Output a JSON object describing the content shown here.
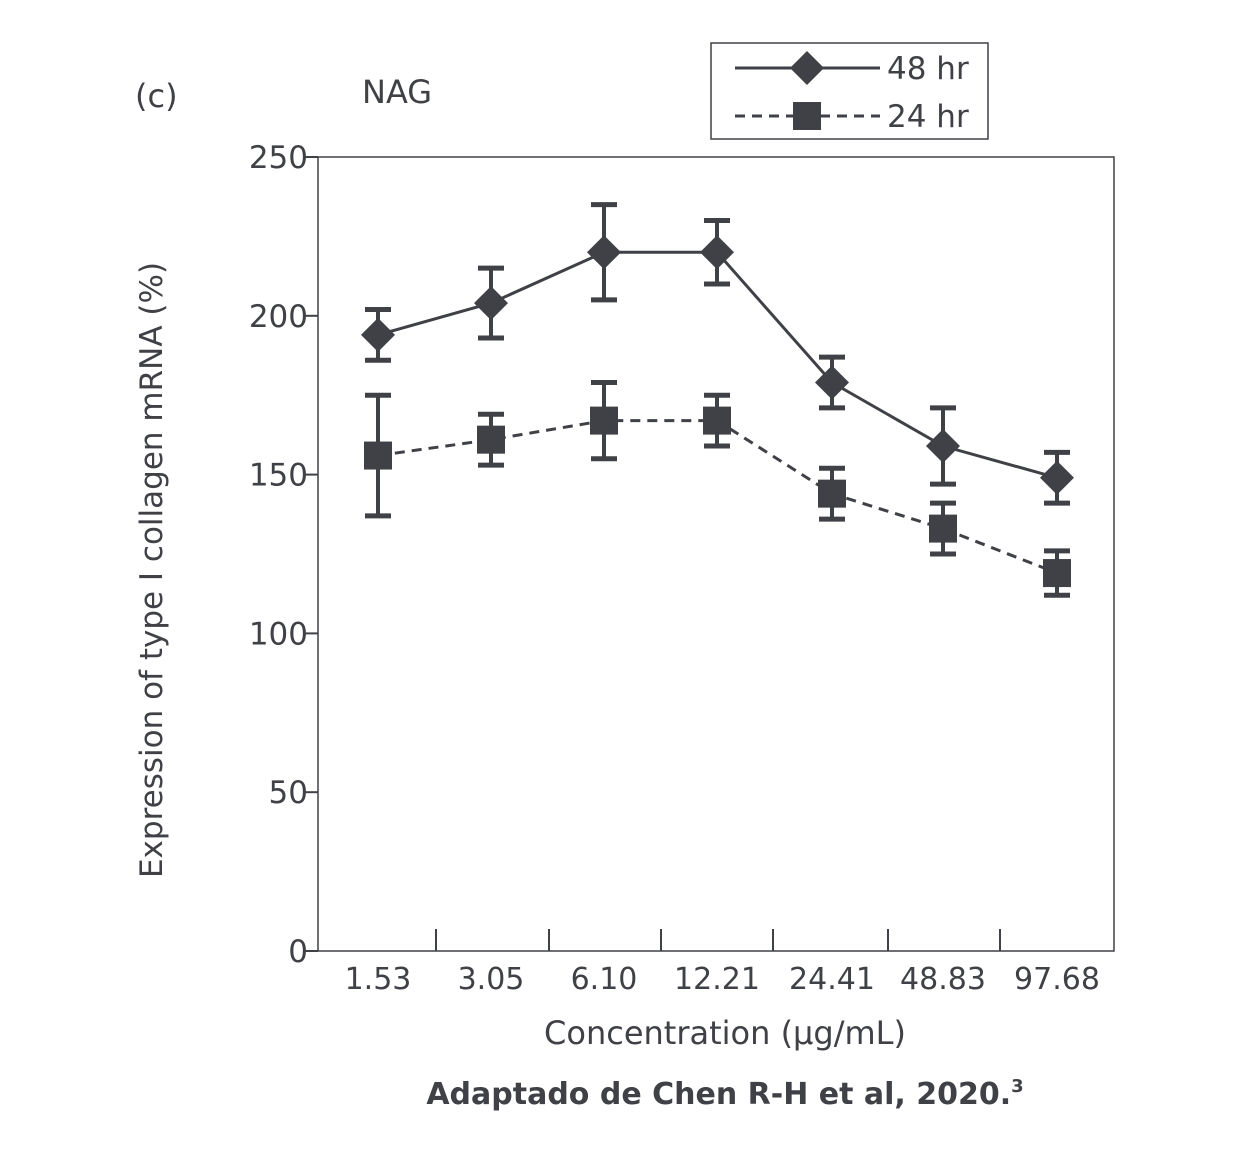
{
  "panel_label": "(c)",
  "compound_label": "NAG",
  "source": "Adaptado de Chen R-H et al, 2020.",
  "source_superscript": "3",
  "colors": {
    "ink": "#3f4146"
  },
  "chart_data": {
    "type": "line",
    "title": "",
    "xlabel": "Concentration (μg/mL)",
    "ylabel": "Expression of type I collagen mRNA (%)",
    "ylim": [
      0,
      250
    ],
    "yticks": [
      0,
      50,
      100,
      150,
      200,
      250
    ],
    "categories": [
      "1.53",
      "3.05",
      "6.10",
      "12.21",
      "24.41",
      "48.83",
      "97.68"
    ],
    "grid": false,
    "legend_position": "top-right-outside",
    "series": [
      {
        "name": "48 hr",
        "marker": "diamond",
        "line_style": "solid",
        "values": [
          194,
          204,
          220,
          220,
          179,
          159,
          149
        ],
        "error": [
          8,
          11,
          15,
          10,
          8,
          12,
          8
        ]
      },
      {
        "name": "24 hr",
        "marker": "square",
        "line_style": "dashed",
        "values": [
          156,
          161,
          167,
          167,
          144,
          133,
          119
        ],
        "error": [
          19,
          8,
          12,
          8,
          8,
          8,
          7
        ]
      }
    ]
  }
}
